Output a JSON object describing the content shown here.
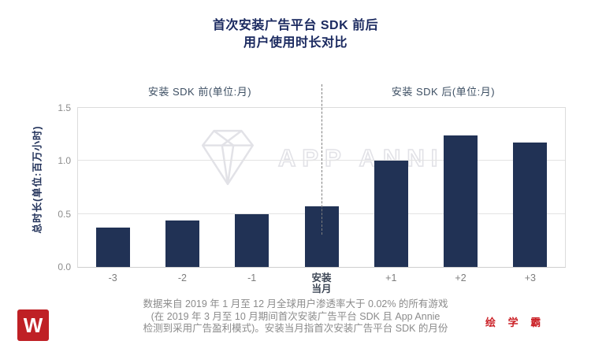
{
  "title": {
    "line1": "首次安装广告平台 SDK 前后",
    "line2": "用户使用时长对比"
  },
  "chart_data": {
    "type": "bar",
    "title": "首次安装广告平台 SDK 前后 用户使用时长对比",
    "ylabel": "总时长(单位:百万小时)",
    "xlabel": "",
    "categories": [
      "-3",
      "-2",
      "-1",
      "安装\n当月",
      "+1",
      "+2",
      "+3"
    ],
    "values": [
      0.37,
      0.44,
      0.5,
      0.57,
      1.0,
      1.24,
      1.17
    ],
    "emphasized_category_index": 3,
    "ylim": [
      0,
      1.5
    ],
    "yticks": [
      0.0,
      0.5,
      1.0,
      1.5
    ],
    "ytick_labels": [
      "0.0",
      "0.5",
      "1.0",
      "1.5"
    ],
    "grid": true,
    "legend": "none",
    "bar_color": "#213255",
    "section_before_label": "安装 SDK 前(单位:月)",
    "section_after_label": "安装 SDK 后(单位:月)",
    "divider_at_category_index": 3
  },
  "watermark": {
    "text": "APP ANNIE",
    "icon": "diamond-icon",
    "color": "#e2e2e7"
  },
  "footnote": {
    "line1": "数据来自 2019 年 1 月至 12 月全球用户渗透率大于 0.02% 的所有游戏",
    "line2": "(在 2019 年 3 月至 10 月期间首次安装广告平台 SDK 且 App Annie",
    "line3": "检测到采用广告盈利模式)。安装当月指首次安装广告平台 SDK 的月份"
  },
  "branding": {
    "logo_letter": "W",
    "logo_color": "#bf2025",
    "text": "绘 学 霸",
    "text_color": "#cb2127"
  }
}
